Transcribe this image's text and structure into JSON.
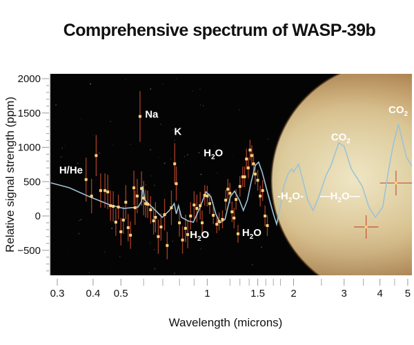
{
  "chart_data": {
    "type": "scatter",
    "title": "Comprehensive spectrum of WASP-39b",
    "xlabel": "Wavelength (microns)",
    "ylabel": "Relative signal strength (ppm)",
    "xscale": "log",
    "xlim": [
      0.285,
      5.45
    ],
    "ylim": [
      -870,
      2070
    ],
    "xticks": [
      {
        "value": 0.3,
        "label": "0.3"
      },
      {
        "value": 0.4,
        "label": "0.4"
      },
      {
        "value": 0.5,
        "label": "0.5"
      },
      {
        "value": 1,
        "label": "1"
      },
      {
        "value": 1.5,
        "label": "1.5"
      },
      {
        "value": 2,
        "label": "2"
      },
      {
        "value": 3,
        "label": "3"
      },
      {
        "value": 4,
        "label": "4"
      },
      {
        "value": 5,
        "label": "5"
      }
    ],
    "xminor_ticks": [
      0.6,
      0.7,
      0.8,
      0.9,
      1.2,
      1.3,
      1.4,
      1.6,
      1.7,
      1.8,
      2.5,
      3.5,
      4.5
    ],
    "yticks": [
      {
        "value": 2000,
        "label": "2000"
      },
      {
        "value": 1500,
        "label": "1500"
      },
      {
        "value": 1000,
        "label": "1000"
      },
      {
        "value": 500,
        "label": "500"
      },
      {
        "value": 0,
        "label": "0"
      },
      {
        "value": -500,
        "label": "−500"
      }
    ],
    "grid": false,
    "background": "starfield with planet WASP-39b at right",
    "colors": {
      "plot_bg": "#050404",
      "model_line": "#9cc3d6",
      "points": "#ffd27a",
      "errorbars": "#c2492e",
      "planet_light": "#e3dcb8",
      "planet_dark": "#a07a45"
    },
    "series": [
      {
        "name": "model",
        "kind": "line",
        "x": [
          0.285,
          0.33,
          0.388,
          0.458,
          0.512,
          0.574,
          0.59,
          0.596,
          0.606,
          0.66,
          0.697,
          0.738,
          0.767,
          0.78,
          0.794,
          0.813,
          0.856,
          0.895,
          0.945,
          0.99,
          1.03,
          1.071,
          1.108,
          1.153,
          1.204,
          1.245,
          1.295,
          1.336,
          1.38,
          1.42,
          1.47,
          1.51,
          1.555,
          1.625,
          1.7,
          1.745,
          1.795,
          1.85,
          1.912,
          1.97,
          2.0,
          2.04,
          2.082,
          2.15,
          2.24,
          2.34,
          2.45,
          2.6,
          2.7,
          2.875,
          3.0,
          3.18,
          3.47,
          3.66,
          3.86,
          4.09,
          4.3,
          4.45,
          4.64,
          4.95,
          5.25,
          5.45
        ],
        "y": [
          482,
          412,
          281,
          161,
          110,
          130,
          211,
          432,
          231,
          80,
          -20,
          80,
          181,
          30,
          150,
          -20,
          -70,
          -90,
          130,
          352,
          281,
          30,
          -100,
          -50,
          281,
          362,
          231,
          80,
          231,
          482,
          734,
          784,
          633,
          332,
          30,
          -120,
          130,
          432,
          613,
          683,
          640,
          700,
          754,
          532,
          231,
          80,
          281,
          600,
          734,
          1065,
          1015,
          683,
          432,
          130,
          -20,
          130,
          700,
          1035,
          1337,
          854,
          683,
          633
        ]
      },
      {
        "name": "observations",
        "kind": "points_with_errorbars",
        "points": [
          {
            "x": 0.378,
            "y": 530,
            "err": 320
          },
          {
            "x": 0.395,
            "y": 290,
            "err": 250
          },
          {
            "x": 0.41,
            "y": 880,
            "err": 300
          },
          {
            "x": 0.425,
            "y": 370,
            "err": 250
          },
          {
            "x": 0.44,
            "y": 370,
            "err": 250
          },
          {
            "x": 0.45,
            "y": 350,
            "err": 250
          },
          {
            "x": 0.46,
            "y": 150,
            "err": 220
          },
          {
            "x": 0.47,
            "y": 140,
            "err": 220
          },
          {
            "x": 0.48,
            "y": -90,
            "err": 200
          },
          {
            "x": 0.49,
            "y": 130,
            "err": 180
          },
          {
            "x": 0.5,
            "y": -230,
            "err": 200
          },
          {
            "x": 0.51,
            "y": -60,
            "err": 200
          },
          {
            "x": 0.52,
            "y": 200,
            "err": 250
          },
          {
            "x": 0.53,
            "y": -170,
            "err": 200
          },
          {
            "x": 0.54,
            "y": -280,
            "err": 200
          },
          {
            "x": 0.555,
            "y": 410,
            "err": 250
          },
          {
            "x": 0.56,
            "y": 120,
            "err": 250
          },
          {
            "x": 0.57,
            "y": 290,
            "err": 250
          },
          {
            "x": 0.583,
            "y": 1450,
            "err": 370
          },
          {
            "x": 0.59,
            "y": 400,
            "err": 250
          },
          {
            "x": 0.6,
            "y": 260,
            "err": 250
          },
          {
            "x": 0.61,
            "y": 180,
            "err": 200
          },
          {
            "x": 0.62,
            "y": 170,
            "err": 200
          },
          {
            "x": 0.635,
            "y": 90,
            "err": 200
          },
          {
            "x": 0.65,
            "y": -70,
            "err": 200
          },
          {
            "x": 0.66,
            "y": -20,
            "err": 220
          },
          {
            "x": 0.675,
            "y": -300,
            "err": 250
          },
          {
            "x": 0.69,
            "y": -160,
            "err": 200
          },
          {
            "x": 0.71,
            "y": 20,
            "err": 230
          },
          {
            "x": 0.725,
            "y": -430,
            "err": 200
          },
          {
            "x": 0.75,
            "y": 120,
            "err": 250
          },
          {
            "x": 0.77,
            "y": 760,
            "err": 300
          },
          {
            "x": 0.78,
            "y": 470,
            "err": 250
          },
          {
            "x": 0.8,
            "y": -100,
            "err": 200
          },
          {
            "x": 0.82,
            "y": -350,
            "err": 200
          },
          {
            "x": 0.84,
            "y": -180,
            "err": 200
          },
          {
            "x": 0.855,
            "y": -270,
            "err": 200
          },
          {
            "x": 0.875,
            "y": 0,
            "err": 200
          },
          {
            "x": 0.9,
            "y": 160,
            "err": 200
          },
          {
            "x": 0.92,
            "y": 110,
            "err": 200
          },
          {
            "x": 0.945,
            "y": 150,
            "err": 200
          },
          {
            "x": 0.96,
            "y": -100,
            "err": 180
          },
          {
            "x": 0.98,
            "y": 300,
            "err": 150
          },
          {
            "x": 1.0,
            "y": 290,
            "err": 150
          },
          {
            "x": 1.02,
            "y": 180,
            "err": 150
          },
          {
            "x": 1.05,
            "y": 10,
            "err": 130
          },
          {
            "x": 1.08,
            "y": -120,
            "err": 130
          },
          {
            "x": 1.1,
            "y": -80,
            "err": 130
          },
          {
            "x": 1.13,
            "y": -50,
            "err": 130
          },
          {
            "x": 1.16,
            "y": 230,
            "err": 150
          },
          {
            "x": 1.18,
            "y": 390,
            "err": 150
          },
          {
            "x": 1.2,
            "y": 330,
            "err": 150
          },
          {
            "x": 1.22,
            "y": 60,
            "err": 150
          },
          {
            "x": 1.24,
            "y": -30,
            "err": 150
          },
          {
            "x": 1.26,
            "y": 240,
            "err": 150
          },
          {
            "x": 1.28,
            "y": -260,
            "err": 130
          },
          {
            "x": 1.3,
            "y": 430,
            "err": 150
          },
          {
            "x": 1.33,
            "y": 570,
            "err": 150
          },
          {
            "x": 1.35,
            "y": 570,
            "err": 150
          },
          {
            "x": 1.37,
            "y": 830,
            "err": 150
          },
          {
            "x": 1.39,
            "y": 700,
            "err": 150
          },
          {
            "x": 1.41,
            "y": 960,
            "err": 150
          },
          {
            "x": 1.43,
            "y": 880,
            "err": 150
          },
          {
            "x": 1.45,
            "y": 760,
            "err": 150
          },
          {
            "x": 1.47,
            "y": 610,
            "err": 150
          },
          {
            "x": 1.5,
            "y": 520,
            "err": 150
          },
          {
            "x": 1.53,
            "y": 290,
            "err": 150
          },
          {
            "x": 1.56,
            "y": 370,
            "err": 150
          },
          {
            "x": 1.59,
            "y": 0,
            "err": 150
          },
          {
            "x": 1.62,
            "y": -140,
            "err": 150
          },
          {
            "x": 3.58,
            "y": -160,
            "err": 170,
            "xerr": [
              3.25,
              3.95
            ]
          },
          {
            "x": 4.55,
            "y": 480,
            "err": 180,
            "xerr": [
              4.0,
              5.25
            ]
          }
        ]
      }
    ],
    "annotations": [
      {
        "text": "H/He",
        "sub": "",
        "x": 0.335,
        "y": 620
      },
      {
        "text": "Na",
        "sub": "",
        "x": 0.64,
        "y": 1430
      },
      {
        "text": "K",
        "sub": "",
        "x": 0.79,
        "y": 1180
      },
      {
        "text": "H",
        "sub": "2",
        "tail": "O",
        "x": 1.05,
        "y": 870,
        "id": "h2o-top"
      },
      {
        "text": "H",
        "sub": "2",
        "tail": "O",
        "x": 0.94,
        "y": -320,
        "id": "h2o-bottom-1"
      },
      {
        "text": "H",
        "sub": "2",
        "tail": "O",
        "x": 1.43,
        "y": -290,
        "id": "h2o-bottom-2"
      },
      {
        "text": "-H",
        "sub": "2",
        "tail": "O-",
        "x": 1.95,
        "y": 240,
        "id": "h2o-band-1"
      },
      {
        "text": "—H",
        "sub": "2",
        "tail": "O—",
        "x": 2.9,
        "y": 240,
        "id": "h2o-band-2"
      },
      {
        "text": "CO",
        "sub": "2",
        "tail": "",
        "x": 2.92,
        "y": 1100,
        "id": "co2-1"
      },
      {
        "text": "CO",
        "sub": "2",
        "tail": "",
        "x": 4.63,
        "y": 1500,
        "id": "co2-2"
      }
    ]
  }
}
